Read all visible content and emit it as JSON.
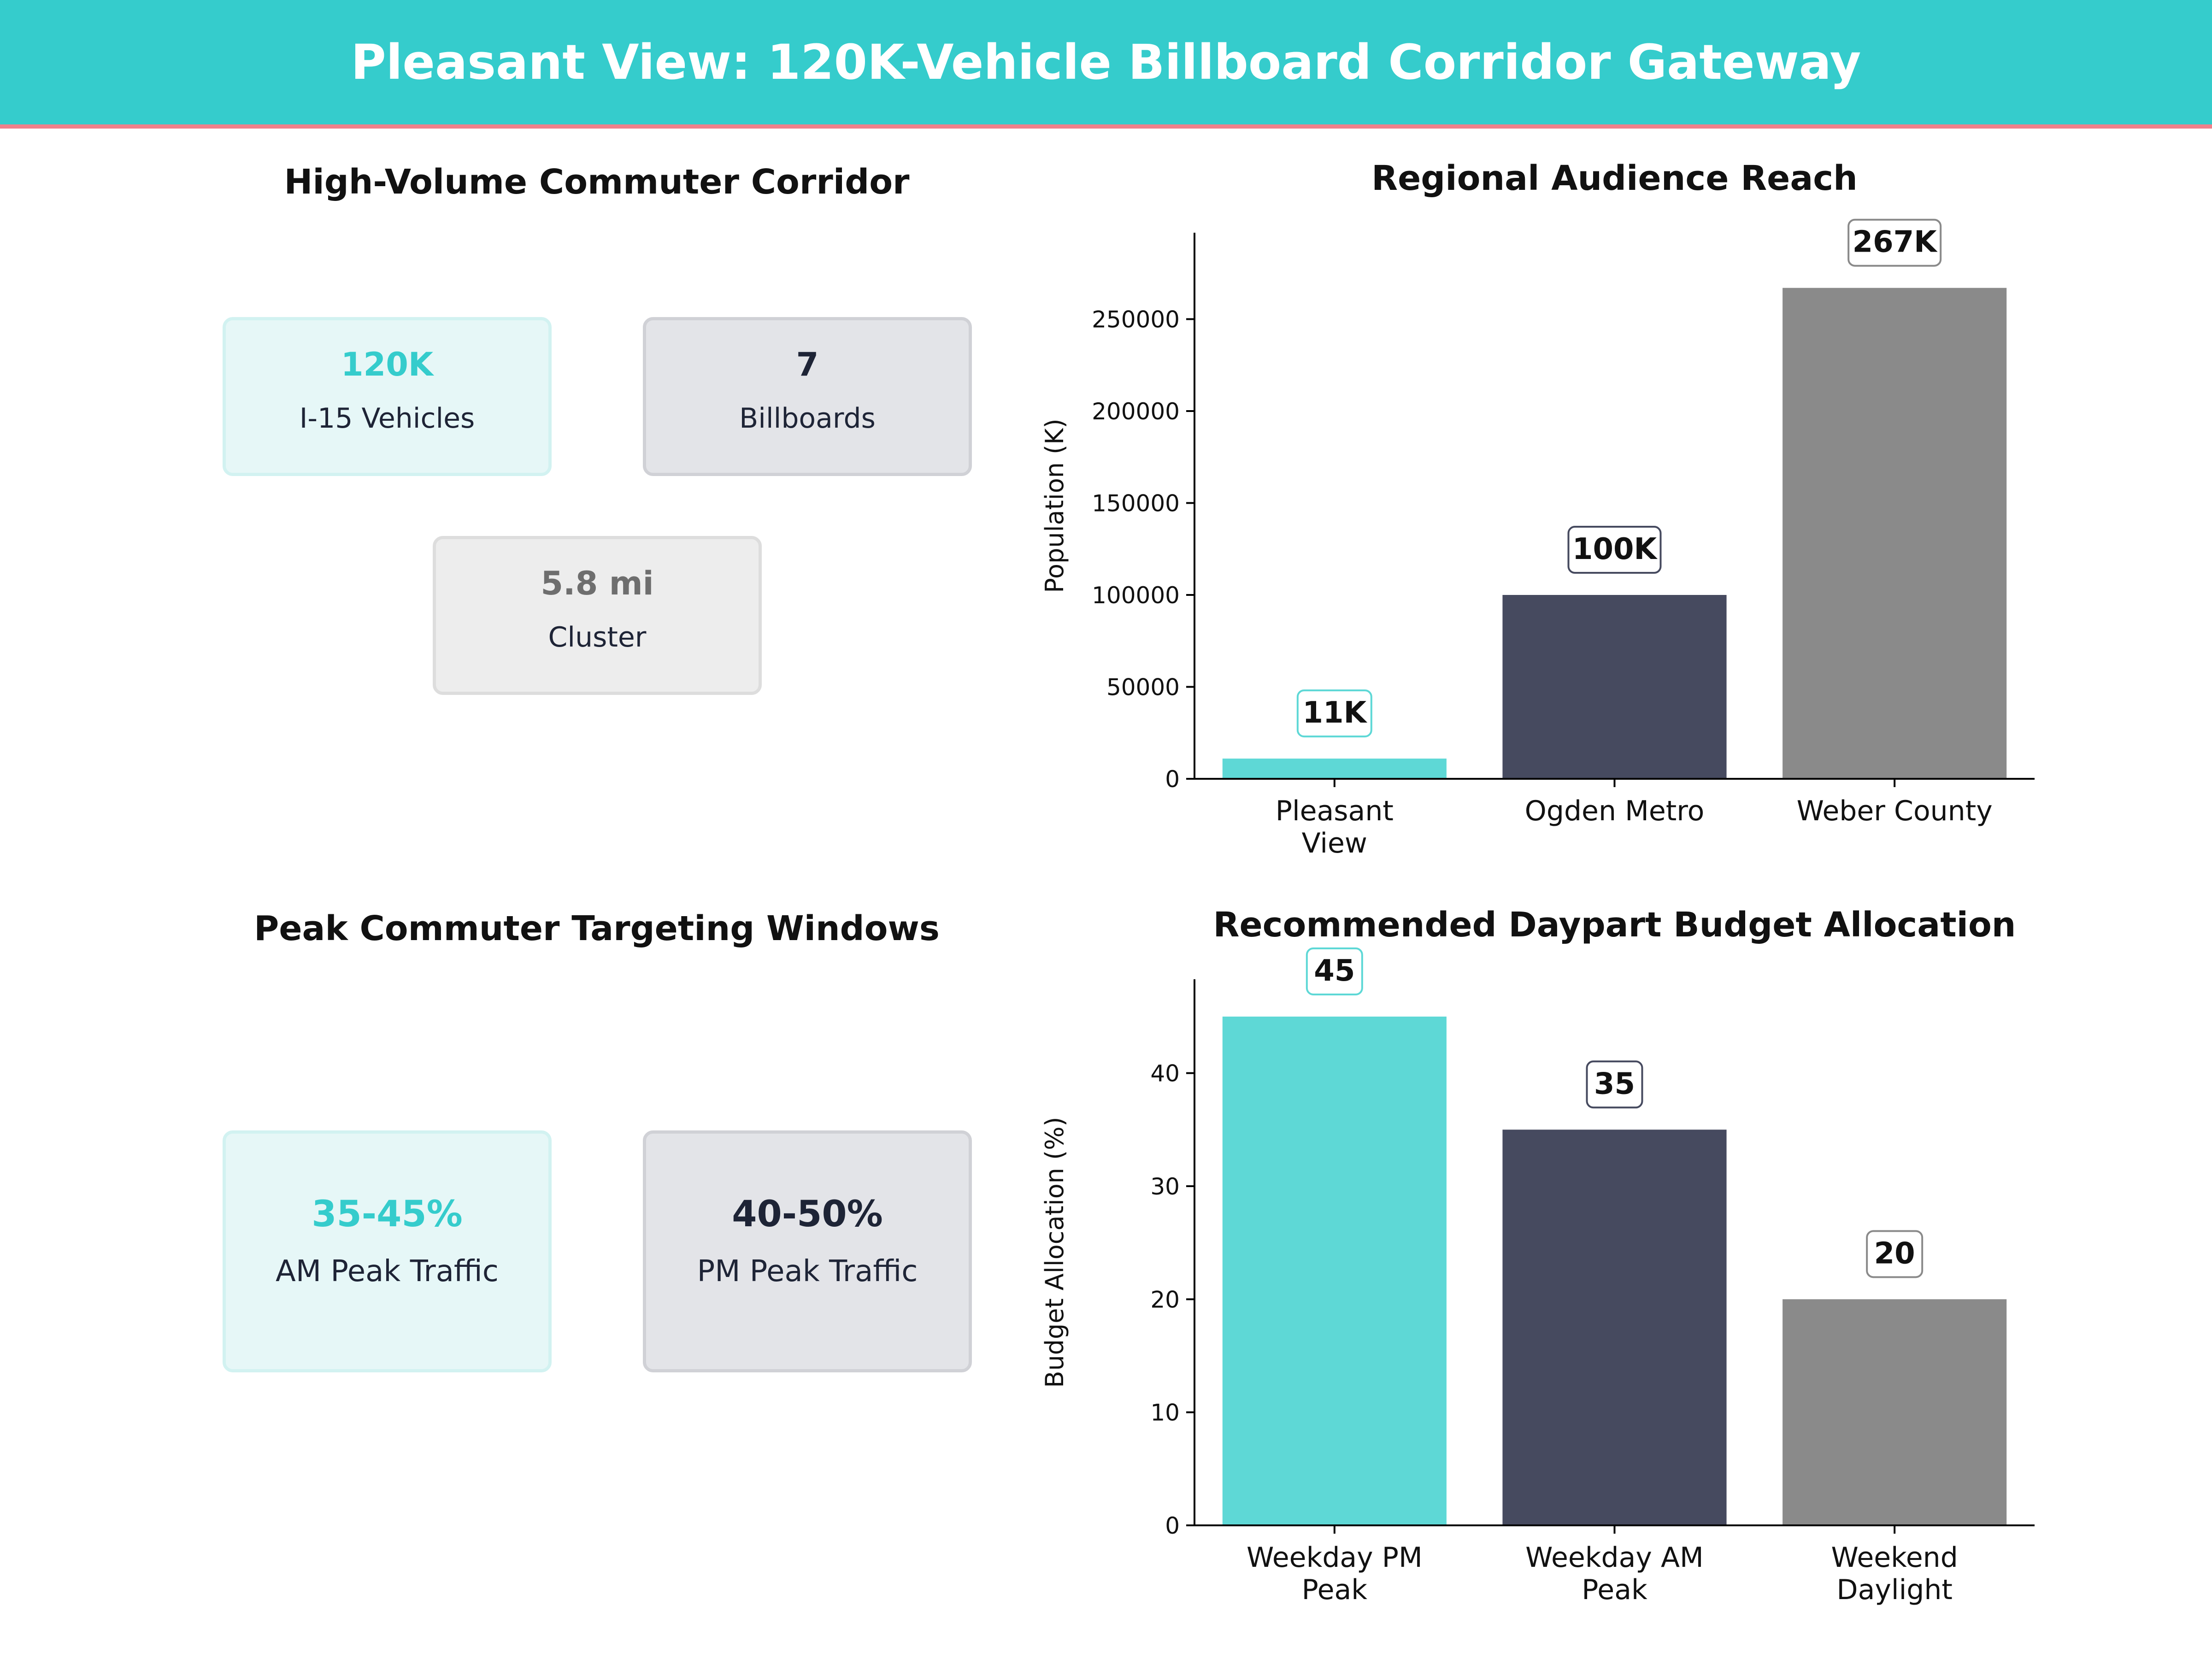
{
  "header": {
    "title": "Pleasant View: 120K-Vehicle Billboard Corridor Gateway"
  },
  "panels": {
    "corridor": {
      "title": "High-Volume Commuter Corridor",
      "cards": [
        {
          "value": "120K",
          "label": "I-15 Vehicles"
        },
        {
          "value": "7",
          "label": "Billboards"
        },
        {
          "value": "5.8 mi",
          "label": "Cluster"
        }
      ]
    },
    "windows": {
      "title": "Peak Commuter Targeting Windows",
      "cards": [
        {
          "value": "35-45%",
          "label": "AM Peak Traffic"
        },
        {
          "value": "40-50%",
          "label": "PM Peak Traffic"
        }
      ]
    }
  },
  "colors": {
    "teal": "#5ED8D6",
    "navy": "#464A5F",
    "gray": "#8A8A8A",
    "accent_line": "#F0808A",
    "header_bg": "#35CCCC"
  },
  "chart_data": [
    {
      "type": "bar",
      "title": "Regional Audience Reach",
      "ylabel": "Population (K)",
      "categories": [
        [
          "Pleasant",
          "View"
        ],
        [
          "Ogden Metro"
        ],
        [
          "Weber County"
        ]
      ],
      "values": [
        11000,
        100000,
        267000
      ],
      "data_labels": [
        "11K",
        "100K",
        "267K"
      ],
      "yticks": [
        0,
        50000,
        100000,
        150000,
        200000,
        250000
      ],
      "ylim": [
        0,
        297000
      ],
      "bar_colors": [
        "#5ED8D6",
        "#464A5F",
        "#8A8A8A"
      ]
    },
    {
      "type": "bar",
      "title": "Recommended Daypart Budget Allocation",
      "ylabel": "Budget Allocation (%)",
      "categories": [
        [
          "Weekday PM",
          "Peak"
        ],
        [
          "Weekday AM",
          "Peak"
        ],
        [
          "Weekend",
          "Daylight"
        ]
      ],
      "values": [
        45,
        35,
        20
      ],
      "data_labels": [
        "45",
        "35",
        "20"
      ],
      "yticks": [
        0,
        10,
        20,
        30,
        40
      ],
      "ylim": [
        0,
        48.3
      ],
      "bar_colors": [
        "#5ED8D6",
        "#464A5F",
        "#8A8A8A"
      ]
    }
  ]
}
